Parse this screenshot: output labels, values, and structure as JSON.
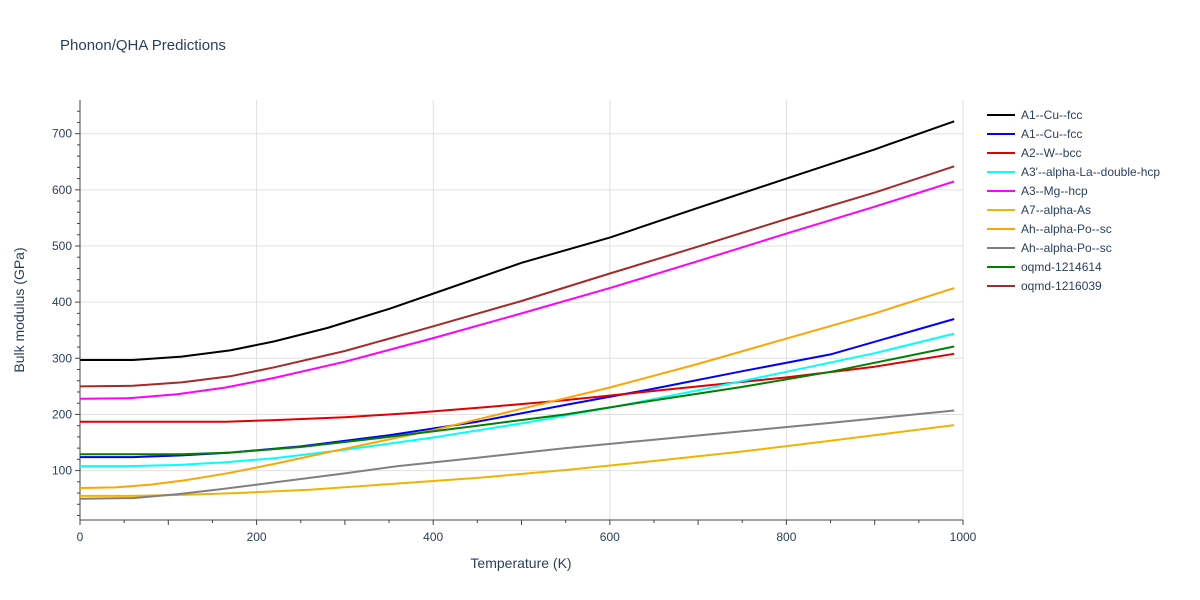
{
  "chart_data": {
    "type": "line",
    "title": "Phonon/QHA Predictions",
    "xlabel": "Temperature (K)",
    "ylabel": "Bulk modulus (GPa)",
    "xlim": [
      0,
      1000
    ],
    "ylim": [
      12,
      760
    ],
    "x_ticks": [
      0,
      200,
      400,
      600,
      800,
      1000
    ],
    "y_ticks": [
      100,
      200,
      300,
      400,
      500,
      600,
      700
    ],
    "grid": true,
    "legend_position": "right",
    "series": [
      {
        "name": "A1--Cu--fcc",
        "color": "#000000",
        "x": [
          0,
          60,
          115,
          170,
          220,
          280,
          350,
          420,
          500,
          600,
          700,
          800,
          900,
          990
        ],
        "y": [
          297,
          297,
          303,
          314,
          330,
          354,
          388,
          426,
          470,
          515,
          568,
          620,
          672,
          722
        ]
      },
      {
        "name": "A1--Cu--fcc",
        "color": "#0000ff",
        "x": [
          0,
          60,
          115,
          170,
          250,
          350,
          450,
          550,
          650,
          750,
          850,
          990
        ],
        "y": [
          124,
          124,
          127,
          132,
          143,
          163,
          187,
          217,
          246,
          277,
          307,
          370
        ]
      },
      {
        "name": "A2--W--bcc",
        "color": "#e00000",
        "x": [
          0,
          60,
          115,
          165,
          220,
          300,
          380,
          460,
          540,
          620,
          700,
          800,
          900,
          990
        ],
        "y": [
          187,
          187,
          187,
          187,
          190,
          195,
          203,
          213,
          224,
          237,
          250,
          266,
          285,
          308
        ]
      },
      {
        "name": "A3'--alpha-La--double-hcp",
        "color": "#00ffff",
        "x": [
          0,
          55,
          110,
          165,
          220,
          300,
          400,
          500,
          600,
          700,
          800,
          900,
          990
        ],
        "y": [
          108,
          108,
          110,
          115,
          122,
          137,
          159,
          184,
          212,
          243,
          276,
          309,
          344
        ]
      },
      {
        "name": "A3--Mg--hcp",
        "color": "#ff00ff",
        "x": [
          0,
          55,
          110,
          165,
          220,
          300,
          400,
          500,
          600,
          700,
          800,
          900,
          990
        ],
        "y": [
          228,
          229,
          236,
          248,
          265,
          294,
          336,
          380,
          425,
          473,
          522,
          570,
          615
        ]
      },
      {
        "name": "A7--alpha-As",
        "color": "#f0b400",
        "x": [
          0,
          60,
          120,
          180,
          260,
          350,
          450,
          550,
          650,
          750,
          850,
          990
        ],
        "y": [
          55,
          55,
          57,
          60,
          66,
          76,
          87,
          101,
          117,
          134,
          153,
          181
        ]
      },
      {
        "name": "Ah--alpha-Po--sc",
        "color": "#ffa500",
        "x": [
          0,
          40,
          80,
          120,
          170,
          220,
          300,
          400,
          500,
          600,
          700,
          800,
          900,
          990
        ],
        "y": [
          69,
          70,
          75,
          83,
          96,
          112,
          139,
          172,
          210,
          248,
          290,
          335,
          380,
          425
        ]
      },
      {
        "name": "Ah--alpha-Po--sc",
        "color": "#808080",
        "x": [
          0,
          60,
          110,
          160,
          220,
          300,
          360,
          450,
          550,
          650,
          750,
          850,
          990
        ],
        "y": [
          50,
          51,
          58,
          67,
          79,
          95,
          108,
          123,
          140,
          155,
          170,
          185,
          207
        ]
      },
      {
        "name": "oqmd-1214614",
        "color": "#008000",
        "x": [
          0,
          60,
          115,
          170,
          250,
          350,
          450,
          550,
          650,
          750,
          850,
          990
        ],
        "y": [
          129,
          129,
          129,
          132,
          142,
          160,
          180,
          200,
          225,
          249,
          276,
          321
        ]
      },
      {
        "name": "oqmd-1216039",
        "color": "#a52a2a",
        "x": [
          0,
          60,
          115,
          170,
          220,
          300,
          400,
          500,
          600,
          700,
          800,
          900,
          990
        ],
        "y": [
          250,
          251,
          257,
          268,
          284,
          313,
          357,
          402,
          451,
          499,
          548,
          595,
          642
        ]
      }
    ]
  }
}
